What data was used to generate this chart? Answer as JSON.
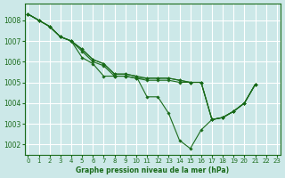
{
  "bg_color": "#cce8e8",
  "grid_color": "#ffffff",
  "line_color": "#1a6b1a",
  "marker": "D",
  "markersize": 1.8,
  "linewidth": 0.8,
  "ylim": [
    1001.5,
    1008.8
  ],
  "xlim": [
    -0.3,
    23.3
  ],
  "yticks": [
    1002,
    1003,
    1004,
    1005,
    1006,
    1007,
    1008
  ],
  "xticks": [
    0,
    1,
    2,
    3,
    4,
    5,
    6,
    7,
    8,
    9,
    10,
    11,
    12,
    13,
    14,
    15,
    16,
    17,
    18,
    19,
    20,
    21,
    22,
    23
  ],
  "xlabel": "Graphe pression niveau de la mer (hPa)",
  "series": [
    [
      1008.3,
      1008.0,
      1007.7,
      1007.2,
      1007.0,
      1006.2,
      1005.9,
      1005.3,
      1005.3,
      1005.3,
      1005.2,
      1005.2,
      1005.2,
      1005.2,
      1005.1,
      1005.0,
      1005.0,
      1003.2,
      1003.3,
      1003.6,
      1004.0,
      1004.9,
      null,
      null
    ],
    [
      1008.3,
      1008.0,
      1007.7,
      1007.2,
      1007.0,
      1006.5,
      1006.0,
      1005.8,
      1005.3,
      1005.3,
      1005.2,
      1005.1,
      1005.1,
      1005.1,
      1005.0,
      1005.0,
      1005.0,
      1003.2,
      1003.3,
      1003.6,
      1004.0,
      1004.9,
      null,
      null
    ],
    [
      1008.3,
      1008.0,
      1007.7,
      1007.2,
      1007.0,
      1006.6,
      1006.1,
      1005.9,
      1005.4,
      1005.4,
      1005.3,
      1005.2,
      1005.2,
      1005.2,
      1005.1,
      1005.0,
      1005.0,
      1003.2,
      1003.3,
      1003.6,
      1004.0,
      1004.9,
      null,
      null
    ],
    [
      1008.3,
      1008.0,
      1007.7,
      1007.2,
      1007.0,
      1006.6,
      1006.1,
      1005.9,
      1005.4,
      1005.4,
      1005.3,
      1004.3,
      1004.3,
      1003.5,
      1002.2,
      1001.8,
      1002.7,
      1003.2,
      1003.3,
      1003.6,
      1004.0,
      1004.9,
      null,
      null
    ]
  ]
}
